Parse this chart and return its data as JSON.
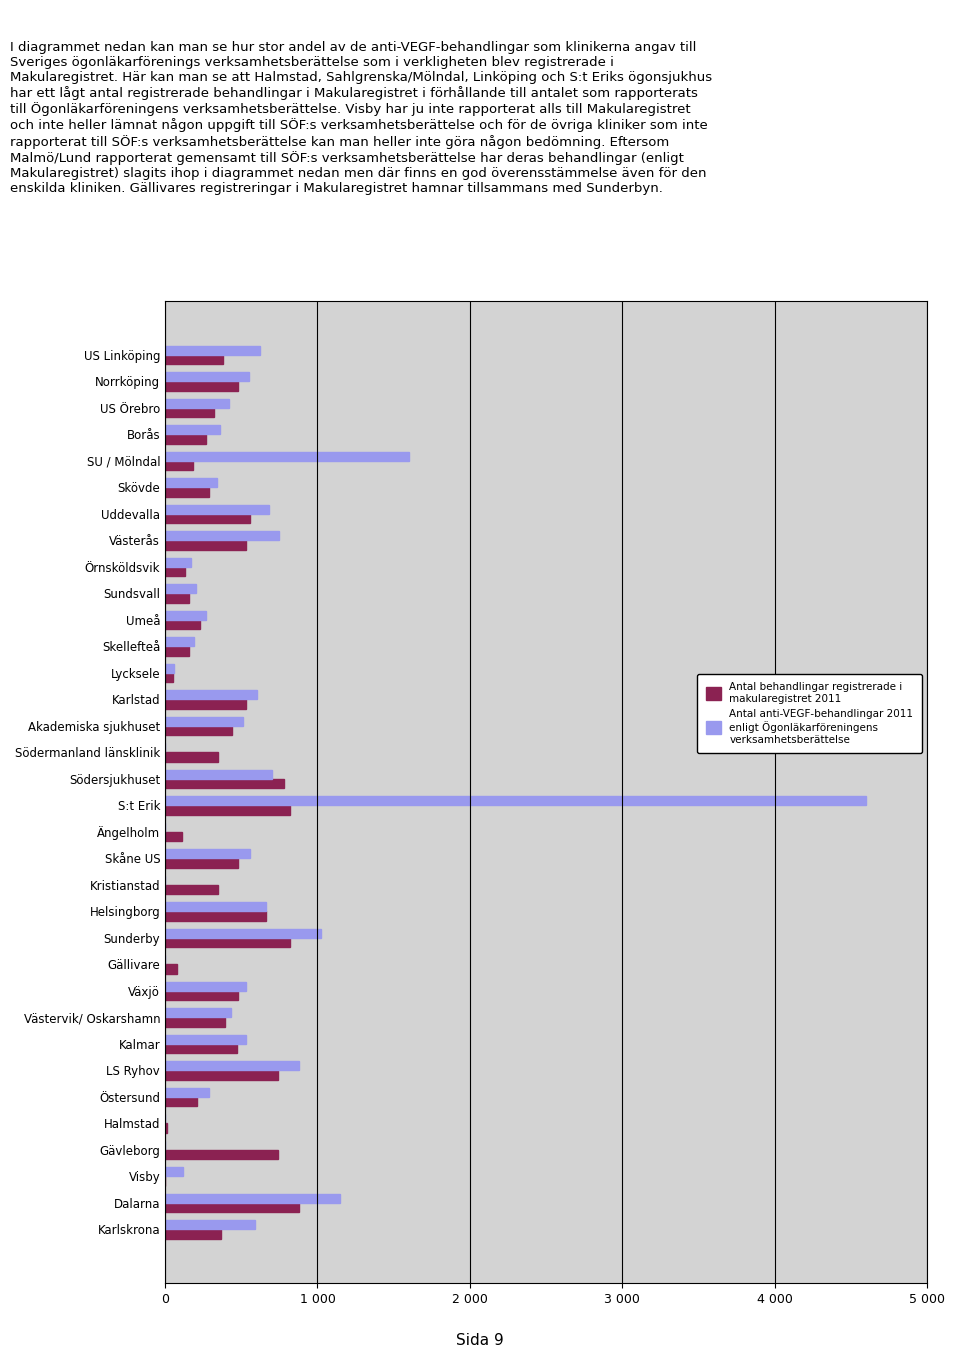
{
  "categories": [
    "US Linköping",
    "Norrköping",
    "US Örebro",
    "Borås",
    "SU / Mölndal",
    "Skövde",
    "Uddevalla",
    "Västerås",
    "Örnsköldsvik",
    "Sundsvall",
    "Umeå",
    "Skellefteå",
    "Lycksele",
    "Karlstad",
    "Akademiska sjukhuset",
    "Södermanland länsklinik",
    "Södersjukhuset",
    "S:t Erik",
    "Ängelholm",
    "Skåne US",
    "Kristianstad",
    "Helsingborg",
    "Sunderby",
    "Gällivare",
    "Växjö",
    "Västervik/ Oskarshamn",
    "Kalmar",
    "LS Ryhov",
    "Östersund",
    "Halmstad",
    "Gävleborg",
    "Visby",
    "Dalarna",
    "Karlskrona"
  ],
  "macula_values": [
    380,
    480,
    320,
    270,
    180,
    290,
    560,
    530,
    130,
    160,
    230,
    160,
    50,
    530,
    440,
    350,
    780,
    820,
    110,
    480,
    350,
    660,
    820,
    80,
    480,
    390,
    470,
    740,
    210,
    10,
    740,
    0,
    880,
    370
  ],
  "sof_values": [
    620,
    550,
    420,
    360,
    1600,
    340,
    680,
    750,
    170,
    200,
    270,
    190,
    60,
    600,
    510,
    0,
    700,
    4600,
    0,
    560,
    0,
    660,
    1020,
    0,
    530,
    430,
    530,
    880,
    290,
    0,
    0,
    120,
    1150,
    590
  ],
  "color_macula": "#8B2252",
  "color_sof": "#9999EE",
  "background_chart": "#D3D3D3",
  "xlim": [
    0,
    5000
  ],
  "xticks": [
    0,
    1000,
    2000,
    3000,
    4000,
    5000
  ],
  "legend_label_macula": "Antal behandlingar registrerade i\nmakularegistret 2011",
  "legend_label_sof": "Antal anti-VEGF-behandlingar 2011\nenligt Ögonläkarföreningens\nverksamhetsberättelse",
  "bar_height": 0.35,
  "figsize": [
    9.6,
    13.62
  ],
  "dpi": 100
}
